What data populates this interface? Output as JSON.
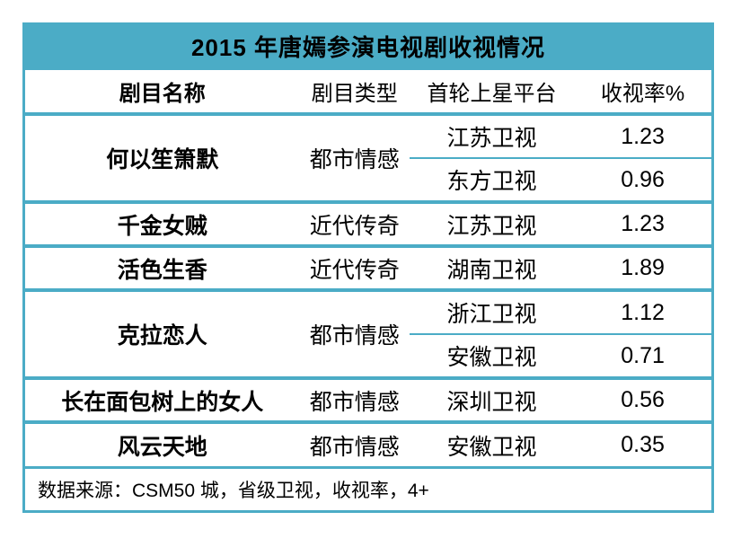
{
  "accent_color": "#4BACC6",
  "text_color": "#000000",
  "table": {
    "title": "2015 年唐嫣参演电视剧收视情况",
    "columns": [
      "剧目名称",
      "剧目类型",
      "首轮上星平台",
      "收视率%"
    ],
    "rows": [
      {
        "name": "何以笙箫默",
        "type": "都市情感",
        "broadcasts": [
          {
            "platform": "江苏卫视",
            "rating": "1.23"
          },
          {
            "platform": "东方卫视",
            "rating": "0.96"
          }
        ]
      },
      {
        "name": "千金女贼",
        "type": "近代传奇",
        "broadcasts": [
          {
            "platform": "江苏卫视",
            "rating": "1.23"
          }
        ]
      },
      {
        "name": "活色生香",
        "type": "近代传奇",
        "broadcasts": [
          {
            "platform": "湖南卫视",
            "rating": "1.89"
          }
        ]
      },
      {
        "name": "克拉恋人",
        "type": "都市情感",
        "broadcasts": [
          {
            "platform": "浙江卫视",
            "rating": "1.12"
          },
          {
            "platform": "安徽卫视",
            "rating": "0.71"
          }
        ]
      },
      {
        "name": "长在面包树上的女人",
        "type": "都市情感",
        "broadcasts": [
          {
            "platform": "深圳卫视",
            "rating": "0.56"
          }
        ]
      },
      {
        "name": "风云天地",
        "type": "都市情感",
        "broadcasts": [
          {
            "platform": "安徽卫视",
            "rating": "0.35"
          }
        ]
      }
    ],
    "source_note": "数据来源：CSM50 城，省级卫视，收视率，4+"
  },
  "chart_data": {
    "type": "table",
    "title": "2015 年唐嫣参演电视剧收视情况",
    "columns": [
      "剧目名称",
      "剧目类型",
      "首轮上星平台",
      "收视率%"
    ],
    "rows": [
      [
        "何以笙箫默",
        "都市情感",
        "江苏卫视",
        1.23
      ],
      [
        "何以笙箫默",
        "都市情感",
        "东方卫视",
        0.96
      ],
      [
        "千金女贼",
        "近代传奇",
        "江苏卫视",
        1.23
      ],
      [
        "活色生香",
        "近代传奇",
        "湖南卫视",
        1.89
      ],
      [
        "克拉恋人",
        "都市情感",
        "浙江卫视",
        1.12
      ],
      [
        "克拉恋人",
        "都市情感",
        "安徽卫视",
        0.71
      ],
      [
        "长在面包树上的女人",
        "都市情感",
        "深圳卫视",
        0.56
      ],
      [
        "风云天地",
        "都市情感",
        "安徽卫视",
        0.35
      ]
    ],
    "footnote": "数据来源：CSM50 城，省级卫视，收视率，4+"
  }
}
